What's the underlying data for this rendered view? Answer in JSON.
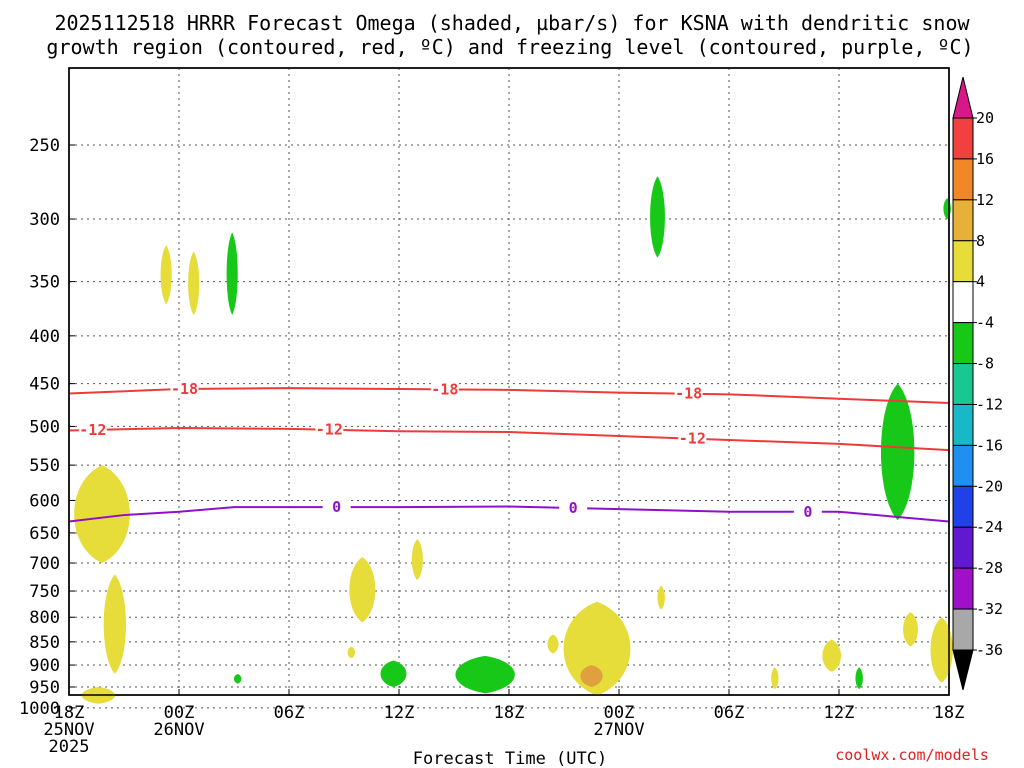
{
  "title_line1": "2025112518 HRRR Forecast Omega (shaded, µbar/s) for KSNA with dendritic snow",
  "title_line2": "growth region (contoured, red, ºC) and freezing level (contoured, purple, ºC)",
  "x_axis_label": "Forecast Time (UTC)",
  "credit": "coolwx.com/models",
  "colors": {
    "dgz_contour": "#ee3a3a",
    "freezing_contour": "#9010c8",
    "terrain": "#a8582a",
    "light_yellow": "#e6dc3a",
    "orange_yellow": "#e0a040",
    "green": "#18c818"
  },
  "chart_data": {
    "type": "heatmap",
    "title": "2025112518 HRRR Forecast Omega (shaded, µbar/s) for KSNA with dendritic snow growth region (contoured, red, ºC) and freezing level (contoured, purple, ºC)",
    "xlabel": "Forecast Time (UTC)",
    "ylabel": "",
    "x_range_hours": [
      0,
      48
    ],
    "y_range_hpa": [
      1050,
      200
    ],
    "y_scale": "log-pressure",
    "grid": true,
    "x_ticks": [
      {
        "hour": 0,
        "lines": [
          "18Z",
          "25NOV",
          "2025"
        ]
      },
      {
        "hour": 6,
        "lines": [
          "00Z",
          "26NOV"
        ]
      },
      {
        "hour": 12,
        "lines": [
          "06Z"
        ]
      },
      {
        "hour": 18,
        "lines": [
          "12Z"
        ]
      },
      {
        "hour": 24,
        "lines": [
          "18Z"
        ]
      },
      {
        "hour": 30,
        "lines": [
          "00Z",
          "27NOV"
        ]
      },
      {
        "hour": 36,
        "lines": [
          "06Z"
        ]
      },
      {
        "hour": 42,
        "lines": [
          "12Z"
        ]
      },
      {
        "hour": 48,
        "lines": [
          "18Z"
        ]
      }
    ],
    "y_ticks": [
      250,
      300,
      350,
      400,
      450,
      500,
      550,
      600,
      650,
      700,
      750,
      800,
      850,
      900,
      950,
      1000
    ],
    "colorbar": {
      "unit": "µbar/s",
      "bins": [
        {
          "from": 20,
          "to": null,
          "color": "#d81888"
        },
        {
          "from": 16,
          "to": 20,
          "color": "#f04040"
        },
        {
          "from": 12,
          "to": 16,
          "color": "#f08828"
        },
        {
          "from": 8,
          "to": 12,
          "color": "#e8b038"
        },
        {
          "from": 4,
          "to": 8,
          "color": "#e6dc3a"
        },
        {
          "from": -4,
          "to": 4,
          "color": "#ffffff"
        },
        {
          "from": -8,
          "to": -4,
          "color": "#18c818"
        },
        {
          "from": -12,
          "to": -8,
          "color": "#18c890"
        },
        {
          "from": -16,
          "to": -12,
          "color": "#18b8c8"
        },
        {
          "from": -20,
          "to": -16,
          "color": "#2090f0"
        },
        {
          "from": -24,
          "to": -20,
          "color": "#2040e8"
        },
        {
          "from": -28,
          "to": -24,
          "color": "#6018d0"
        },
        {
          "from": -32,
          "to": -28,
          "color": "#a010c8"
        },
        {
          "from": -36,
          "to": -32,
          "color": "#a8a8a8"
        },
        {
          "from": null,
          "to": -36,
          "color": "#000000"
        }
      ],
      "labels": [
        "20",
        "16",
        "12",
        "8",
        "4",
        "-4",
        "-8",
        "-12",
        "-16",
        "-20",
        "-24",
        "-28",
        "-32",
        "-36"
      ]
    },
    "contours": [
      {
        "name": "-18",
        "color": "#ee3a3a",
        "points": [
          [
            0,
            461
          ],
          [
            6,
            456
          ],
          [
            12,
            455
          ],
          [
            18,
            456
          ],
          [
            24,
            457
          ],
          [
            30,
            460
          ],
          [
            36,
            462
          ],
          [
            42,
            467
          ],
          [
            48,
            472
          ]
        ],
        "labels": [
          {
            "text": "-18",
            "hour": 6.3
          },
          {
            "text": "-18",
            "hour": 20.5
          },
          {
            "text": "-18",
            "hour": 33.8
          }
        ]
      },
      {
        "name": "-12",
        "color": "#ee3a3a",
        "points": [
          [
            0,
            505
          ],
          [
            6,
            502
          ],
          [
            12,
            503
          ],
          [
            18,
            506
          ],
          [
            24,
            507
          ],
          [
            30,
            512
          ],
          [
            36,
            517
          ],
          [
            42,
            522
          ],
          [
            48,
            530
          ]
        ],
        "labels": [
          {
            "text": "-12",
            "hour": 1.3
          },
          {
            "text": "-12",
            "hour": 14.2
          },
          {
            "text": "-12",
            "hour": 34.0
          }
        ]
      },
      {
        "name": "0",
        "color": "#9010c8",
        "points": [
          [
            0,
            632
          ],
          [
            3,
            622
          ],
          [
            6,
            617
          ],
          [
            9,
            610
          ],
          [
            12,
            610
          ],
          [
            18,
            610
          ],
          [
            24,
            609
          ],
          [
            30,
            613
          ],
          [
            36,
            617
          ],
          [
            42,
            617
          ],
          [
            48,
            632
          ]
        ],
        "labels": [
          {
            "text": "0",
            "hour": 14.6
          },
          {
            "text": "0",
            "hour": 27.5
          },
          {
            "text": "0",
            "hour": 40.3
          }
        ]
      }
    ],
    "omega_regions": [
      {
        "sign": "up",
        "value_bin": "4 to 8",
        "center_hour": 5.3,
        "center_hpa": 345,
        "half_width_h": 0.3,
        "hpa_range": [
          320,
          370
        ]
      },
      {
        "sign": "up",
        "value_bin": "4 to 8",
        "center_hour": 6.8,
        "center_hpa": 350,
        "half_width_h": 0.3,
        "hpa_range": [
          325,
          380
        ]
      },
      {
        "sign": "down",
        "value_bin": "-4 to -8",
        "center_hour": 8.9,
        "center_hpa": 345,
        "half_width_h": 0.3,
        "hpa_range": [
          310,
          380
        ]
      },
      {
        "sign": "down",
        "value_bin": "-4 to -8",
        "center_hour": 32.1,
        "center_hpa": 300,
        "half_width_h": 0.4,
        "hpa_range": [
          270,
          330
        ]
      },
      {
        "sign": "down",
        "value_bin": "-4 to -8",
        "center_hour": 47.9,
        "center_hpa": 292,
        "half_width_h": 0.2,
        "hpa_range": [
          285,
          300
        ]
      },
      {
        "sign": "down",
        "value_bin": "-4 to -8",
        "center_hour": 45.2,
        "center_hpa": 540,
        "half_width_h": 0.9,
        "hpa_range": [
          450,
          630
        ]
      },
      {
        "sign": "up",
        "value_bin": "4 to 8",
        "center_hour": 1.8,
        "center_hpa": 630,
        "half_width_h": 1.5,
        "hpa_range": [
          550,
          700
        ]
      },
      {
        "sign": "up",
        "value_bin": "4 to 8",
        "center_hour": 2.5,
        "center_hpa": 830,
        "half_width_h": 0.6,
        "hpa_range": [
          720,
          920
        ]
      },
      {
        "sign": "up",
        "value_bin": "4 to 8",
        "center_hour": 1.6,
        "center_hpa": 970,
        "half_width_h": 0.9,
        "hpa_range": [
          950,
          990
        ]
      },
      {
        "sign": "up",
        "value_bin": "4 to 8",
        "center_hour": 16.0,
        "center_hpa": 750,
        "half_width_h": 0.7,
        "hpa_range": [
          690,
          810
        ]
      },
      {
        "sign": "up",
        "value_bin": "4 to 8",
        "center_hour": 19.0,
        "center_hpa": 695,
        "half_width_h": 0.3,
        "hpa_range": [
          660,
          730
        ]
      },
      {
        "sign": "up",
        "value_bin": "4 to 8",
        "center_hour": 15.4,
        "center_hpa": 870,
        "half_width_h": 0.2,
        "hpa_range": [
          860,
          885
        ]
      },
      {
        "sign": "up",
        "value_bin": "4 to 8",
        "center_hour": 26.4,
        "center_hpa": 855,
        "half_width_h": 0.3,
        "hpa_range": [
          835,
          875
        ]
      },
      {
        "sign": "up",
        "value_bin": "4 to 8",
        "center_hour": 28.8,
        "center_hpa": 880,
        "half_width_h": 1.8,
        "hpa_range": [
          770,
          970
        ]
      },
      {
        "sign": "up",
        "value_bin": "8 to 12",
        "center_hour": 28.5,
        "center_hpa": 925,
        "half_width_h": 0.6,
        "hpa_range": [
          900,
          950
        ]
      },
      {
        "sign": "up",
        "value_bin": "4 to 8",
        "center_hour": 32.3,
        "center_hpa": 760,
        "half_width_h": 0.2,
        "hpa_range": [
          740,
          785
        ]
      },
      {
        "sign": "up",
        "value_bin": "4 to 8",
        "center_hour": 38.5,
        "center_hpa": 930,
        "half_width_h": 0.2,
        "hpa_range": [
          905,
          955
        ]
      },
      {
        "sign": "up",
        "value_bin": "4 to 8",
        "center_hour": 41.6,
        "center_hpa": 880,
        "half_width_h": 0.5,
        "hpa_range": [
          845,
          915
        ]
      },
      {
        "sign": "up",
        "value_bin": "4 to 8",
        "center_hour": 45.9,
        "center_hpa": 825,
        "half_width_h": 0.4,
        "hpa_range": [
          790,
          860
        ]
      },
      {
        "sign": "up",
        "value_bin": "4 to 8",
        "center_hour": 47.6,
        "center_hpa": 850,
        "half_width_h": 0.6,
        "hpa_range": [
          800,
          940
        ]
      },
      {
        "sign": "down",
        "value_bin": "-4 to -8",
        "center_hour": 17.7,
        "center_hpa": 920,
        "half_width_h": 0.7,
        "hpa_range": [
          890,
          950
        ]
      },
      {
        "sign": "down",
        "value_bin": "-4 to -8",
        "center_hour": 22.7,
        "center_hpa": 925,
        "half_width_h": 1.6,
        "hpa_range": [
          880,
          965
        ]
      },
      {
        "sign": "down",
        "value_bin": "-4 to -8",
        "center_hour": 9.2,
        "center_hpa": 930,
        "half_width_h": 0.2,
        "hpa_range": [
          920,
          942
        ]
      },
      {
        "sign": "down",
        "value_bin": "-4 to -8",
        "center_hour": 43.1,
        "center_hpa": 930,
        "half_width_h": 0.2,
        "hpa_range": [
          905,
          955
        ]
      }
    ],
    "terrain_top_hpa": 1015
  }
}
